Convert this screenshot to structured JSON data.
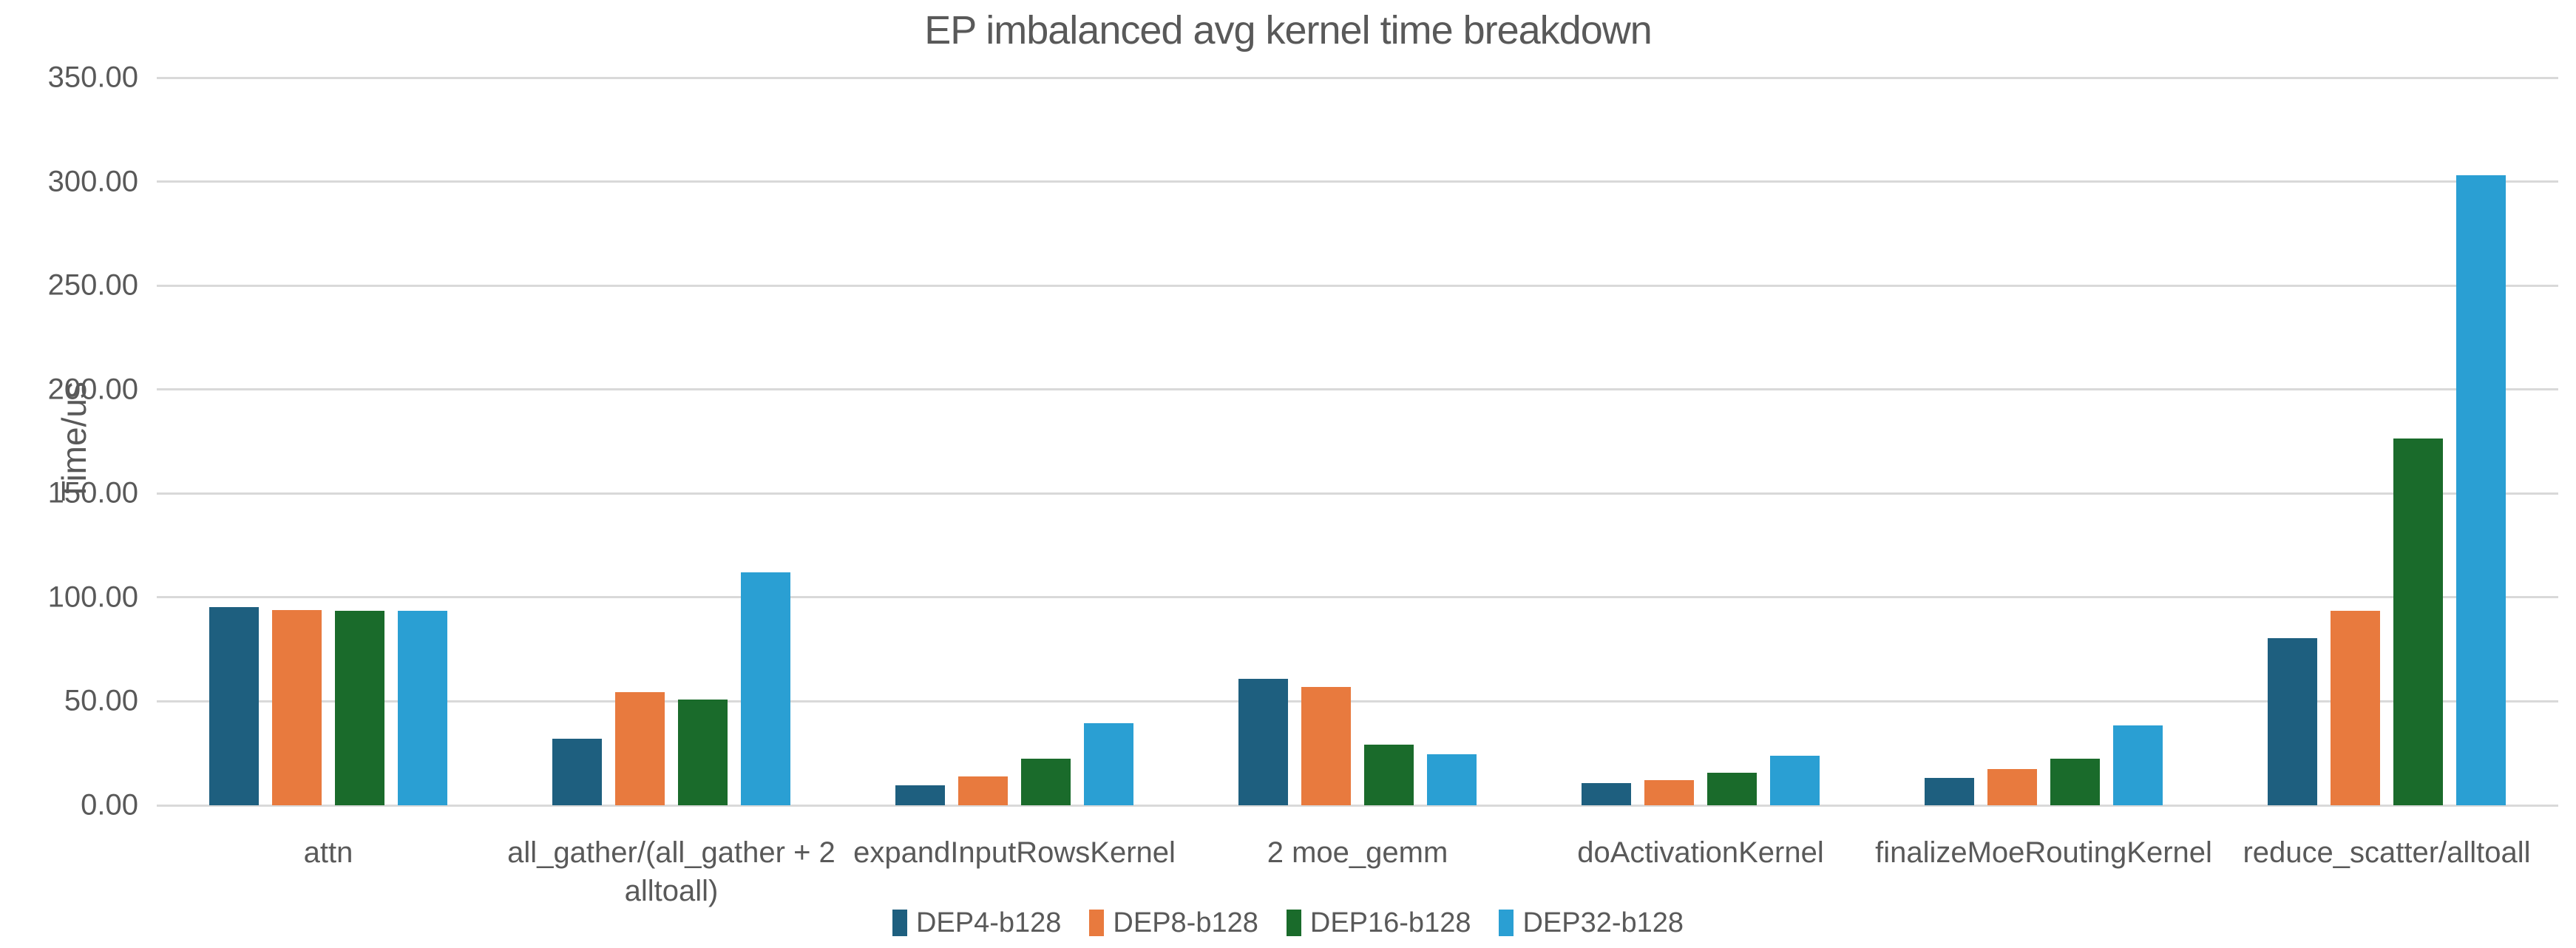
{
  "chart_data": {
    "type": "bar",
    "title": "EP imbalanced avg kernel time breakdown",
    "ylabel": "Time/us",
    "xlabel": "",
    "ylim": [
      0,
      350
    ],
    "ytick_step": 50,
    "yticks": [
      "0.00",
      "50.00",
      "100.00",
      "150.00",
      "200.00",
      "250.00",
      "300.00",
      "350.00"
    ],
    "grid": true,
    "legend_position": "bottom",
    "categories": [
      "attn",
      "all_gather/(all_gather + 2 alltoall)",
      "expandInputRowsKernel",
      "2 moe_gemm",
      "doActivationKernel",
      "finalizeMoeRoutingKernel",
      "reduce_scatter/alltoall"
    ],
    "series": [
      {
        "name": "DEP4-b128",
        "color": "#1E5F7F",
        "values": [
          95.5,
          32.0,
          9.5,
          61.0,
          10.5,
          13.0,
          80.5
        ]
      },
      {
        "name": "DEP8-b128",
        "color": "#E87A3E",
        "values": [
          94.0,
          54.5,
          14.0,
          57.0,
          12.0,
          17.5,
          93.5
        ]
      },
      {
        "name": "DEP16-b128",
        "color": "#1A6B2B",
        "values": [
          93.5,
          51.0,
          22.5,
          29.0,
          15.5,
          22.5,
          176.5
        ]
      },
      {
        "name": "DEP32-b128",
        "color": "#2A9FD3",
        "values": [
          93.5,
          112.0,
          39.5,
          24.5,
          24.0,
          38.5,
          303.0
        ]
      }
    ]
  },
  "style": {
    "text_color": "#595959",
    "gridline_color": "#D9D9D9",
    "background": "#FFFFFF"
  }
}
